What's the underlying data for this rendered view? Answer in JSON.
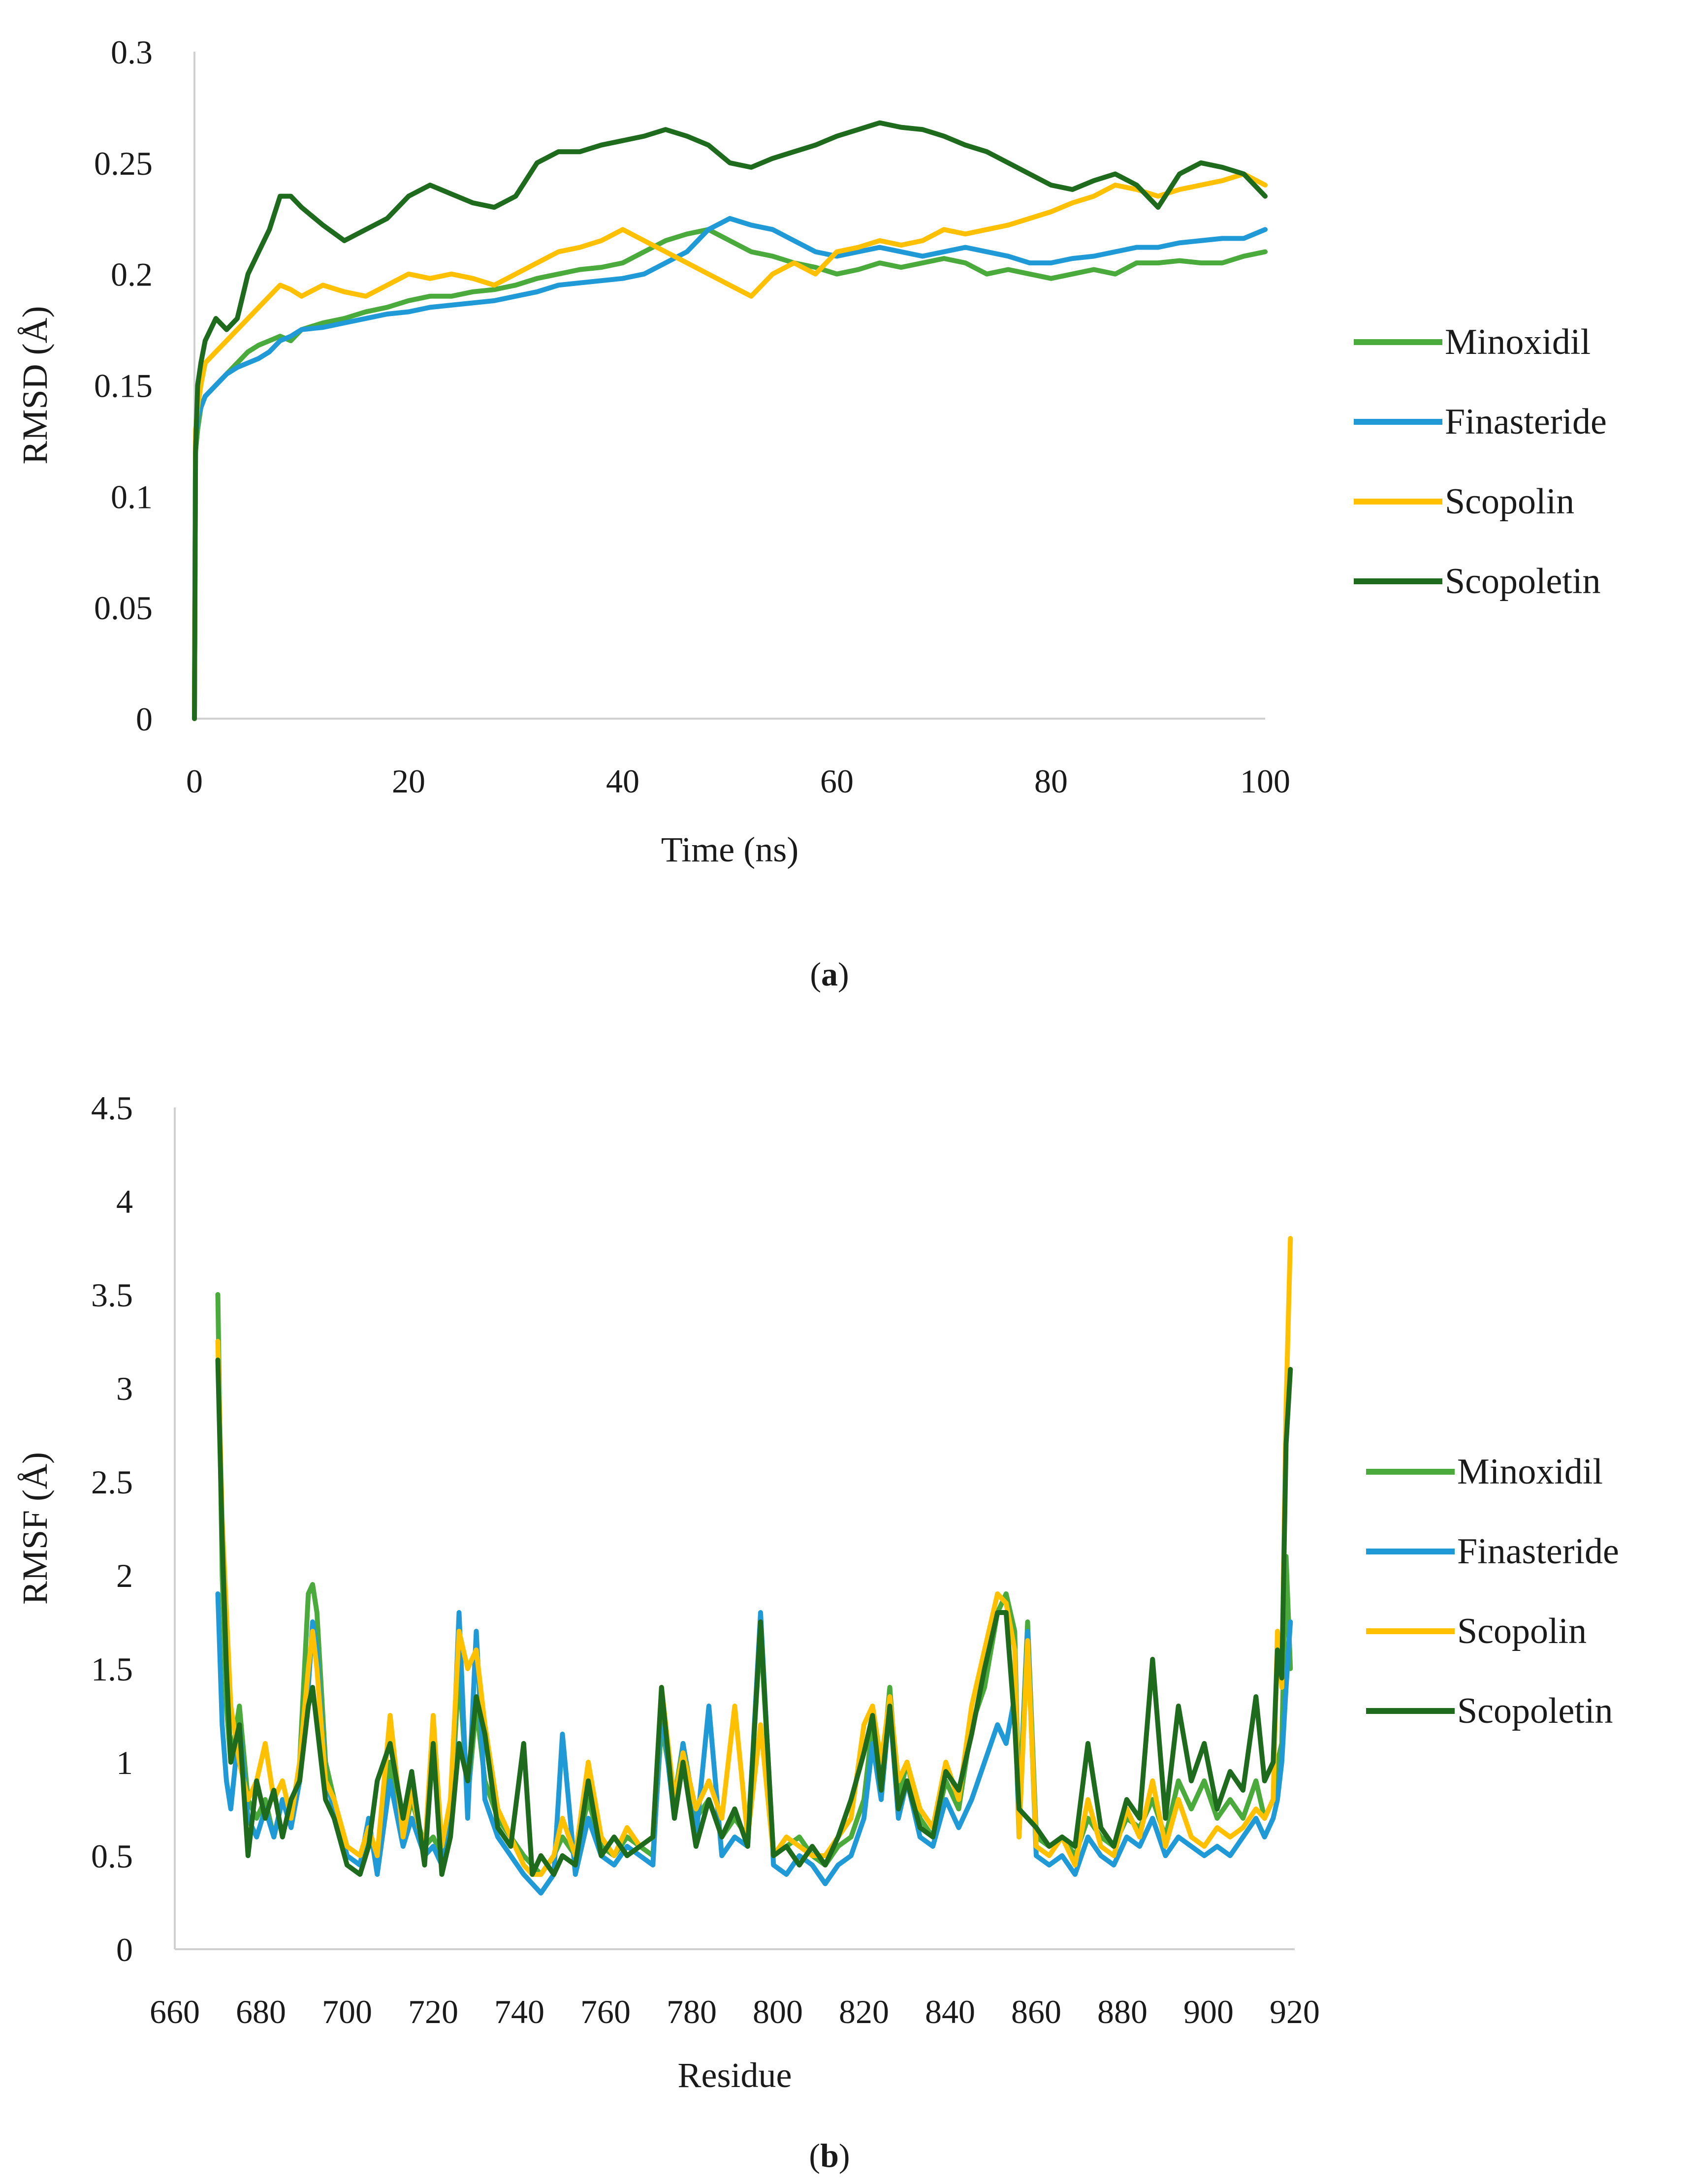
{
  "chart_data": [
    {
      "panel": "a",
      "type": "line",
      "title": "",
      "xlabel": "Time (ns)",
      "ylabel": "RMSD (Å)",
      "xlim": [
        0,
        100
      ],
      "ylim": [
        0,
        0.3
      ],
      "xticks": [
        "0",
        "20",
        "40",
        "60",
        "80",
        "100"
      ],
      "yticks": [
        "0",
        "0.05",
        "0.1",
        "0.15",
        "0.2",
        "0.25",
        "0.3"
      ],
      "legend_position": "right",
      "x": [
        0,
        0.1,
        0.3,
        0.6,
        1,
        2,
        3,
        4,
        5,
        6,
        7,
        8,
        9,
        10,
        12,
        14,
        16,
        18,
        20,
        22,
        24,
        26,
        28,
        30,
        32,
        34,
        36,
        38,
        40,
        42,
        44,
        46,
        48,
        50,
        52,
        54,
        56,
        58,
        60,
        62,
        64,
        66,
        68,
        70,
        72,
        74,
        76,
        78,
        80,
        82,
        84,
        86,
        88,
        90,
        92,
        94,
        96,
        98,
        100
      ],
      "series": [
        {
          "name": "Minoxidil",
          "color": "#4aab3c",
          "values": [
            0,
            0.12,
            0.13,
            0.14,
            0.145,
            0.15,
            0.155,
            0.16,
            0.165,
            0.168,
            0.17,
            0.172,
            0.17,
            0.175,
            0.178,
            0.18,
            0.183,
            0.185,
            0.188,
            0.19,
            0.19,
            0.192,
            0.193,
            0.195,
            0.198,
            0.2,
            0.202,
            0.203,
            0.205,
            0.21,
            0.215,
            0.218,
            0.22,
            0.215,
            0.21,
            0.208,
            0.205,
            0.203,
            0.2,
            0.202,
            0.205,
            0.203,
            0.205,
            0.207,
            0.205,
            0.2,
            0.202,
            0.2,
            0.198,
            0.2,
            0.202,
            0.2,
            0.205,
            0.205,
            0.206,
            0.205,
            0.205,
            0.208,
            0.21
          ]
        },
        {
          "name": "Finasteride",
          "color": "#1f9ad6",
          "values": [
            0,
            0.125,
            0.135,
            0.14,
            0.145,
            0.15,
            0.155,
            0.158,
            0.16,
            0.162,
            0.165,
            0.17,
            0.172,
            0.175,
            0.176,
            0.178,
            0.18,
            0.182,
            0.183,
            0.185,
            0.186,
            0.187,
            0.188,
            0.19,
            0.192,
            0.195,
            0.196,
            0.197,
            0.198,
            0.2,
            0.205,
            0.21,
            0.22,
            0.225,
            0.222,
            0.22,
            0.215,
            0.21,
            0.208,
            0.21,
            0.212,
            0.21,
            0.208,
            0.21,
            0.212,
            0.21,
            0.208,
            0.205,
            0.205,
            0.207,
            0.208,
            0.21,
            0.212,
            0.212,
            0.214,
            0.215,
            0.216,
            0.216,
            0.22
          ]
        },
        {
          "name": "Scopolin",
          "color": "#ffc000",
          "values": [
            0,
            0.13,
            0.14,
            0.15,
            0.16,
            0.165,
            0.17,
            0.175,
            0.18,
            0.185,
            0.19,
            0.195,
            0.193,
            0.19,
            0.195,
            0.192,
            0.19,
            0.195,
            0.2,
            0.198,
            0.2,
            0.198,
            0.195,
            0.2,
            0.205,
            0.21,
            0.212,
            0.215,
            0.22,
            0.215,
            0.21,
            0.205,
            0.2,
            0.195,
            0.19,
            0.2,
            0.205,
            0.2,
            0.21,
            0.212,
            0.215,
            0.213,
            0.215,
            0.22,
            0.218,
            0.22,
            0.222,
            0.225,
            0.228,
            0.232,
            0.235,
            0.24,
            0.238,
            0.235,
            0.238,
            0.24,
            0.242,
            0.245,
            0.24
          ]
        },
        {
          "name": "Scopoletin",
          "color": "#1e6b1e",
          "values": [
            0,
            0.12,
            0.15,
            0.16,
            0.17,
            0.18,
            0.175,
            0.18,
            0.2,
            0.21,
            0.22,
            0.235,
            0.235,
            0.23,
            0.222,
            0.215,
            0.22,
            0.225,
            0.235,
            0.24,
            0.236,
            0.232,
            0.23,
            0.235,
            0.25,
            0.255,
            0.255,
            0.258,
            0.26,
            0.262,
            0.265,
            0.262,
            0.258,
            0.25,
            0.248,
            0.252,
            0.255,
            0.258,
            0.262,
            0.265,
            0.268,
            0.266,
            0.265,
            0.262,
            0.258,
            0.255,
            0.25,
            0.245,
            0.24,
            0.238,
            0.242,
            0.245,
            0.24,
            0.23,
            0.245,
            0.25,
            0.248,
            0.245,
            0.235
          ]
        }
      ]
    },
    {
      "panel": "b",
      "type": "line",
      "title": "",
      "xlabel": "Residue",
      "ylabel": "RMSF (Å)",
      "xlim": [
        660,
        920
      ],
      "ylim": [
        0,
        4.5
      ],
      "xticks": [
        "660",
        "680",
        "700",
        "720",
        "740",
        "760",
        "780",
        "800",
        "820",
        "840",
        "860",
        "880",
        "900",
        "920"
      ],
      "yticks": [
        "0",
        "0.5",
        "1",
        "1.5",
        "2",
        "2.5",
        "3",
        "3.5",
        "4",
        "4.5"
      ],
      "legend_position": "right",
      "x": [
        670,
        671,
        672,
        673,
        675,
        677,
        679,
        681,
        683,
        685,
        687,
        689,
        691,
        692,
        693,
        695,
        697,
        700,
        703,
        705,
        707,
        710,
        713,
        715,
        718,
        720,
        722,
        724,
        726,
        728,
        730,
        732,
        735,
        738,
        741,
        743,
        745,
        748,
        750,
        753,
        756,
        759,
        762,
        765,
        768,
        771,
        773,
        776,
        778,
        781,
        784,
        787,
        790,
        793,
        796,
        799,
        802,
        805,
        808,
        811,
        814,
        817,
        820,
        822,
        824,
        826,
        828,
        830,
        833,
        836,
        839,
        842,
        845,
        848,
        851,
        853,
        855,
        856,
        858,
        860,
        863,
        866,
        869,
        872,
        875,
        878,
        881,
        884,
        887,
        890,
        893,
        896,
        899,
        902,
        905,
        908,
        911,
        913,
        915,
        916,
        917,
        918,
        919
      ],
      "series": [
        {
          "name": "Minoxidil",
          "color": "#4aab3c",
          "values": [
            3.5,
            2.0,
            1.3,
            1.0,
            1.3,
            0.8,
            0.7,
            0.8,
            0.6,
            0.8,
            0.7,
            1.0,
            1.9,
            1.95,
            1.8,
            1.0,
            0.8,
            0.5,
            0.45,
            0.6,
            0.5,
            1.0,
            0.6,
            0.8,
            0.55,
            0.6,
            0.5,
            0.7,
            1.5,
            0.8,
            1.3,
            0.9,
            0.7,
            0.6,
            0.5,
            0.45,
            0.4,
            0.5,
            0.6,
            0.5,
            0.8,
            0.55,
            0.5,
            0.6,
            0.55,
            0.5,
            1.2,
            0.8,
            1.1,
            0.7,
            0.8,
            0.6,
            0.7,
            0.6,
            1.7,
            0.5,
            0.55,
            0.6,
            0.5,
            0.45,
            0.55,
            0.6,
            0.8,
            1.2,
            0.9,
            1.4,
            0.8,
            1.0,
            0.7,
            0.6,
            0.9,
            0.75,
            1.2,
            1.4,
            1.8,
            1.9,
            1.7,
            0.7,
            1.75,
            0.6,
            0.55,
            0.6,
            0.5,
            0.7,
            0.6,
            0.55,
            0.7,
            0.65,
            0.8,
            0.6,
            0.9,
            0.75,
            0.9,
            0.7,
            0.8,
            0.7,
            0.9,
            0.7,
            0.8,
            1.0,
            1.1,
            2.1,
            1.5
          ]
        },
        {
          "name": "Finasteride",
          "color": "#1f9ad6",
          "values": [
            1.9,
            1.2,
            0.9,
            0.75,
            1.2,
            0.7,
            0.6,
            0.75,
            0.6,
            0.8,
            0.65,
            0.9,
            1.4,
            1.75,
            1.6,
            0.9,
            0.75,
            0.5,
            0.45,
            0.7,
            0.4,
            0.9,
            0.55,
            0.7,
            0.5,
            0.55,
            0.45,
            0.65,
            1.8,
            0.7,
            1.7,
            0.8,
            0.6,
            0.5,
            0.4,
            0.35,
            0.3,
            0.4,
            1.15,
            0.4,
            0.7,
            0.5,
            0.45,
            0.55,
            0.5,
            0.45,
            1.3,
            0.7,
            1.1,
            0.6,
            1.3,
            0.5,
            0.6,
            0.55,
            1.8,
            0.45,
            0.4,
            0.5,
            0.45,
            0.35,
            0.45,
            0.5,
            0.7,
            1.1,
            0.8,
            1.3,
            0.7,
            0.9,
            0.6,
            0.55,
            0.8,
            0.65,
            0.8,
            1.0,
            1.2,
            1.1,
            1.35,
            0.6,
            1.7,
            0.5,
            0.45,
            0.5,
            0.4,
            0.6,
            0.5,
            0.45,
            0.6,
            0.55,
            0.7,
            0.5,
            0.6,
            0.55,
            0.5,
            0.55,
            0.5,
            0.6,
            0.7,
            0.6,
            0.7,
            0.8,
            1.0,
            1.4,
            1.75
          ]
        },
        {
          "name": "Scopolin",
          "color": "#ffc000",
          "values": [
            3.25,
            2.3,
            1.8,
            1.3,
            1.0,
            0.8,
            0.9,
            1.1,
            0.8,
            0.9,
            0.7,
            1.0,
            1.5,
            1.7,
            1.5,
            0.9,
            0.8,
            0.55,
            0.5,
            0.65,
            0.5,
            1.25,
            0.6,
            0.85,
            0.5,
            1.25,
            0.55,
            0.8,
            1.7,
            1.5,
            1.6,
            1.2,
            0.75,
            0.6,
            0.45,
            0.4,
            0.4,
            0.5,
            0.7,
            0.5,
            1.0,
            0.6,
            0.5,
            0.65,
            0.55,
            0.6,
            1.4,
            0.8,
            1.05,
            0.75,
            0.9,
            0.7,
            1.3,
            0.6,
            1.2,
            0.5,
            0.6,
            0.55,
            0.5,
            0.5,
            0.6,
            0.7,
            1.2,
            1.3,
            1.0,
            1.35,
            0.9,
            1.0,
            0.75,
            0.65,
            1.0,
            0.8,
            1.3,
            1.6,
            1.9,
            1.85,
            1.6,
            0.6,
            1.65,
            0.55,
            0.5,
            0.6,
            0.45,
            0.8,
            0.55,
            0.5,
            0.75,
            0.6,
            0.9,
            0.55,
            0.8,
            0.6,
            0.55,
            0.65,
            0.6,
            0.65,
            0.75,
            0.7,
            0.8,
            1.7,
            1.4,
            2.9,
            3.8
          ]
        },
        {
          "name": "Scopoletin",
          "color": "#1e6b1e",
          "values": [
            3.15,
            2.2,
            1.5,
            1.0,
            1.2,
            0.5,
            0.9,
            0.7,
            0.85,
            0.6,
            0.8,
            0.9,
            1.3,
            1.4,
            1.2,
            0.8,
            0.7,
            0.45,
            0.4,
            0.55,
            0.9,
            1.1,
            0.7,
            0.95,
            0.45,
            1.1,
            0.4,
            0.6,
            1.1,
            0.9,
            1.35,
            1.15,
            0.65,
            0.55,
            1.1,
            0.4,
            0.5,
            0.4,
            0.5,
            0.45,
            0.9,
            0.5,
            0.6,
            0.5,
            0.55,
            0.6,
            1.4,
            0.7,
            1.0,
            0.55,
            0.8,
            0.6,
            0.75,
            0.55,
            1.75,
            0.5,
            0.55,
            0.45,
            0.55,
            0.45,
            0.6,
            0.8,
            1.05,
            1.25,
            0.85,
            1.3,
            0.75,
            0.9,
            0.65,
            0.6,
            0.95,
            0.85,
            1.15,
            1.5,
            1.8,
            1.8,
            1.2,
            0.75,
            0.7,
            0.65,
            0.55,
            0.6,
            0.55,
            1.1,
            0.65,
            0.55,
            0.8,
            0.7,
            1.55,
            0.7,
            1.3,
            0.9,
            1.1,
            0.75,
            0.95,
            0.85,
            1.35,
            0.9,
            1.0,
            1.6,
            1.45,
            2.7,
            3.1
          ]
        }
      ]
    }
  ],
  "captions": {
    "a_open": "(",
    "a_letter": "a",
    "a_close": ")",
    "b_open": "(",
    "b_letter": "b",
    "b_close": ")"
  }
}
